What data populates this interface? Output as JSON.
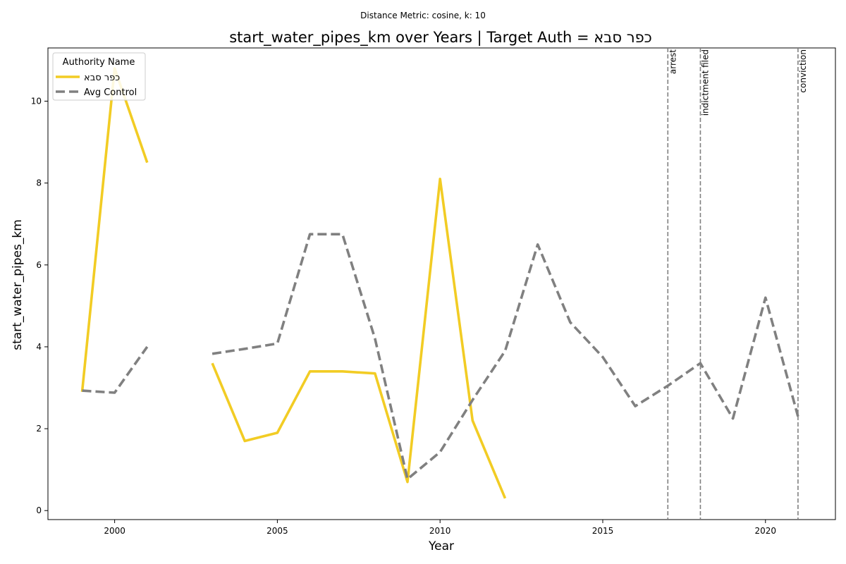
{
  "chart_data": {
    "type": "line",
    "suptitle": "Distance Metric: cosine, k: 10",
    "title": "start_water_pipes_km over Years | Target Auth = כפר סבא",
    "xlabel": "Year",
    "ylabel": "start_water_pipes_km",
    "xlim": [
      1997.95,
      2022.15
    ],
    "ylim": [
      -0.22,
      11.3
    ],
    "xticks": [
      2000,
      2005,
      2010,
      2015,
      2020
    ],
    "yticks": [
      0,
      2,
      4,
      6,
      8,
      10
    ],
    "grid": false,
    "legend": {
      "title": "Authority Name",
      "placement": "top-left"
    },
    "series": [
      {
        "name": "כפר סבא",
        "color": "#f2cc24",
        "style": "solid",
        "segments": [
          [
            [
              1999,
              2.9
            ],
            [
              2000,
              10.8
            ],
            [
              2001,
              8.5
            ]
          ],
          [
            [
              2003,
              3.6
            ],
            [
              2004,
              1.7
            ],
            [
              2005,
              1.9
            ],
            [
              2006,
              3.4
            ],
            [
              2007,
              3.4
            ],
            [
              2008,
              3.35
            ],
            [
              2009,
              0.7
            ],
            [
              2010,
              8.1
            ],
            [
              2011,
              2.2
            ],
            [
              2012,
              0.3
            ]
          ]
        ]
      },
      {
        "name": "Avg Control",
        "color": "#808080",
        "style": "dashed",
        "segments": [
          [
            [
              1999,
              2.93
            ],
            [
              2000,
              2.88
            ],
            [
              2001,
              4.0
            ]
          ],
          [
            [
              2003,
              3.83
            ],
            [
              2004,
              3.95
            ],
            [
              2005,
              4.08
            ],
            [
              2006,
              6.75
            ],
            [
              2007,
              6.75
            ],
            [
              2008,
              4.2
            ],
            [
              2009,
              0.77
            ],
            [
              2010,
              1.43
            ],
            [
              2011,
              2.7
            ],
            [
              2012,
              3.9
            ],
            [
              2013,
              6.5
            ],
            [
              2014,
              4.6
            ],
            [
              2015,
              3.75
            ],
            [
              2016,
              2.55
            ],
            [
              2017,
              3.05
            ],
            [
              2018,
              3.6
            ],
            [
              2019,
              2.25
            ],
            [
              2020,
              5.2
            ],
            [
              2021,
              2.3
            ]
          ]
        ]
      }
    ],
    "events": [
      {
        "x": 2017,
        "label": "arrest"
      },
      {
        "x": 2018,
        "label": "indictment filed"
      },
      {
        "x": 2021,
        "label": "conviction"
      }
    ]
  }
}
